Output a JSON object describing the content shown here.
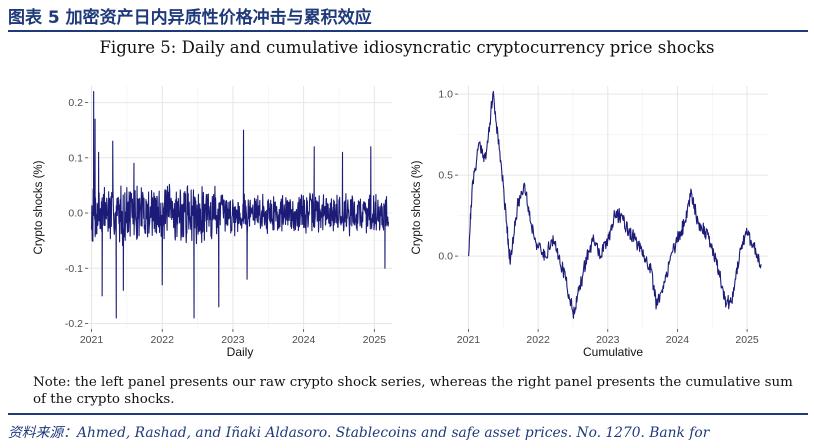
{
  "header": {
    "title": "图表 5   加密资产日内异质性价格冲击与累积效应",
    "figure_title": "Figure 5: Daily and cumulative idiosyncratic cryptocurrency price shocks"
  },
  "colors": {
    "accent": "#1f3a7a",
    "series": "#1c1c78",
    "grid": "#e6e6e6"
  },
  "chart_data": [
    {
      "type": "line",
      "panel": "left",
      "xlabel": "Daily",
      "ylabel": "Crypto shocks (%)",
      "xlim": [
        2020.95,
        2025.25
      ],
      "ylim": [
        -0.21,
        0.23
      ],
      "xticks": [
        {
          "v": 2021,
          "label": "2021"
        },
        {
          "v": 2022,
          "label": "2022"
        },
        {
          "v": 2023,
          "label": "2023"
        },
        {
          "v": 2024,
          "label": "2024"
        },
        {
          "v": 2025,
          "label": "2025"
        }
      ],
      "yticks": [
        {
          "v": 0.2,
          "label": "0.2"
        },
        {
          "v": 0.1,
          "label": "0.1"
        },
        {
          "v": 0.0,
          "label": "0.0"
        },
        {
          "v": -0.1,
          "label": "-0.1"
        },
        {
          "v": -0.2,
          "label": "-0.2"
        }
      ],
      "grid": true,
      "series": [
        {
          "x_start": 2021.0,
          "x_end": 2025.2,
          "spikes": [
            {
              "x": 2021.03,
              "y": 0.22
            },
            {
              "x": 2021.05,
              "y": 0.17
            },
            {
              "x": 2021.1,
              "y": 0.11
            },
            {
              "x": 2021.15,
              "y": -0.15
            },
            {
              "x": 2021.3,
              "y": 0.13
            },
            {
              "x": 2021.35,
              "y": -0.19
            },
            {
              "x": 2021.45,
              "y": -0.14
            },
            {
              "x": 2021.6,
              "y": 0.09
            },
            {
              "x": 2022.0,
              "y": -0.13
            },
            {
              "x": 2022.45,
              "y": -0.19
            },
            {
              "x": 2022.8,
              "y": -0.17
            },
            {
              "x": 2023.15,
              "y": 0.15
            },
            {
              "x": 2023.2,
              "y": -0.12
            },
            {
              "x": 2024.15,
              "y": 0.12
            },
            {
              "x": 2024.55,
              "y": 0.11
            },
            {
              "x": 2024.95,
              "y": 0.12
            },
            {
              "x": 2025.15,
              "y": -0.1
            }
          ]
        }
      ]
    },
    {
      "type": "line",
      "panel": "right",
      "xlabel": "Cumulative",
      "ylabel": "Crypto shocks (%)",
      "xlim": [
        2020.85,
        2025.3
      ],
      "ylim": [
        -0.45,
        1.05
      ],
      "xticks": [
        {
          "v": 2021,
          "label": "2021"
        },
        {
          "v": 2022,
          "label": "2022"
        },
        {
          "v": 2023,
          "label": "2023"
        },
        {
          "v": 2024,
          "label": "2024"
        },
        {
          "v": 2025,
          "label": "2025"
        }
      ],
      "yticks": [
        {
          "v": 1.0,
          "label": "1.0"
        },
        {
          "v": 0.5,
          "label": "0.5"
        },
        {
          "v": 0.0,
          "label": "0.0"
        }
      ],
      "grid": true,
      "series": [
        {
          "points": [
            [
              2021.0,
              0.0
            ],
            [
              2021.05,
              0.4
            ],
            [
              2021.15,
              0.7
            ],
            [
              2021.25,
              0.6
            ],
            [
              2021.35,
              1.0
            ],
            [
              2021.45,
              0.65
            ],
            [
              2021.55,
              0.2
            ],
            [
              2021.6,
              -0.05
            ],
            [
              2021.7,
              0.3
            ],
            [
              2021.8,
              0.45
            ],
            [
              2021.9,
              0.2
            ],
            [
              2022.0,
              0.05
            ],
            [
              2022.1,
              0.0
            ],
            [
              2022.2,
              0.1
            ],
            [
              2022.3,
              0.0
            ],
            [
              2022.4,
              -0.15
            ],
            [
              2022.5,
              -0.35
            ],
            [
              2022.6,
              -0.2
            ],
            [
              2022.7,
              0.0
            ],
            [
              2022.8,
              0.1
            ],
            [
              2022.9,
              0.0
            ],
            [
              2023.0,
              0.1
            ],
            [
              2023.1,
              0.25
            ],
            [
              2023.2,
              0.25
            ],
            [
              2023.3,
              0.15
            ],
            [
              2023.4,
              0.1
            ],
            [
              2023.5,
              0.0
            ],
            [
              2023.6,
              -0.05
            ],
            [
              2023.7,
              -0.3
            ],
            [
              2023.8,
              -0.2
            ],
            [
              2023.9,
              0.0
            ],
            [
              2024.0,
              0.1
            ],
            [
              2024.1,
              0.2
            ],
            [
              2024.2,
              0.4
            ],
            [
              2024.3,
              0.2
            ],
            [
              2024.4,
              0.15
            ],
            [
              2024.5,
              0.05
            ],
            [
              2024.6,
              -0.1
            ],
            [
              2024.7,
              -0.3
            ],
            [
              2024.8,
              -0.25
            ],
            [
              2024.9,
              0.05
            ],
            [
              2025.0,
              0.15
            ],
            [
              2025.1,
              0.05
            ],
            [
              2025.2,
              -0.05
            ]
          ]
        }
      ]
    }
  ],
  "note": "Note: the left panel presents our raw crypto shock series, whereas the right panel presents the cumulative sum of the crypto shocks.",
  "source": "资料来源：Ahmed, Rashad, and Iñaki Aldasoro. Stablecoins and safe asset prices. No. 1270. Bank for"
}
